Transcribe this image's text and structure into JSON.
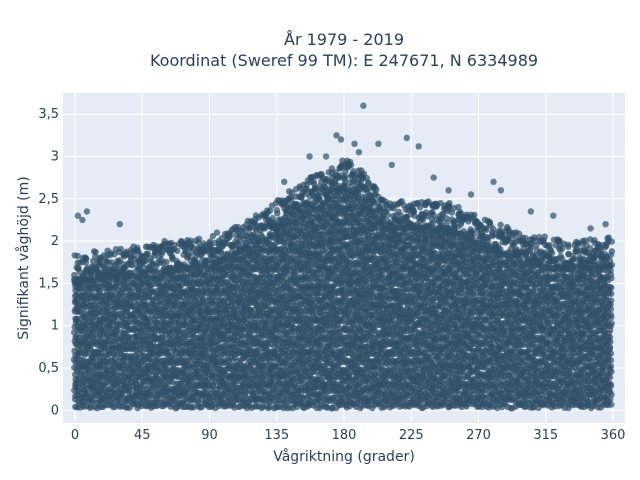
{
  "chart_data": {
    "type": "scatter",
    "title": "År 1979 - 2019",
    "subtitle": "Koordinat (Sweref 99 TM): E 247671, N 6334989",
    "xlabel": "Vågriktning (grader)",
    "ylabel": "Signifikant våghöjd (m)",
    "xlim": [
      -8,
      368
    ],
    "ylim": [
      -0.15,
      3.75
    ],
    "x_ticks": [
      0,
      45,
      90,
      135,
      180,
      225,
      270,
      315,
      360
    ],
    "x_tick_labels": [
      "0",
      "45",
      "90",
      "135",
      "180",
      "225",
      "270",
      "315",
      "360"
    ],
    "y_ticks": [
      0,
      0.5,
      1,
      1.5,
      2,
      2.5,
      3,
      3.5
    ],
    "y_tick_labels": [
      "0",
      "0,5",
      "1",
      "1,5",
      "2",
      "2,5",
      "3",
      "3,5"
    ],
    "grid": true,
    "background": "#e5ecf6",
    "marker_color": "#2f5068",
    "series": [
      {
        "upper_envelope": [
          [
            0,
            1.75
          ],
          [
            20,
            1.8
          ],
          [
            45,
            1.85
          ],
          [
            70,
            1.9
          ],
          [
            90,
            1.95
          ],
          [
            110,
            2.1
          ],
          [
            130,
            2.3
          ],
          [
            150,
            2.6
          ],
          [
            170,
            2.75
          ],
          [
            180,
            2.9
          ],
          [
            195,
            2.7
          ],
          [
            210,
            2.35
          ],
          [
            225,
            2.4
          ],
          [
            250,
            2.35
          ],
          [
            270,
            2.2
          ],
          [
            300,
            2.0
          ],
          [
            330,
            1.9
          ],
          [
            360,
            1.95
          ]
        ],
        "lower_bound": 0.05,
        "outliers": [
          [
            2,
            2.3
          ],
          [
            5,
            2.25
          ],
          [
            8,
            2.35
          ],
          [
            30,
            2.2
          ],
          [
            60,
            2.0
          ],
          [
            95,
            2.1
          ],
          [
            140,
            2.7
          ],
          [
            157,
            3.0
          ],
          [
            168,
            3.0
          ],
          [
            175,
            3.25
          ],
          [
            178,
            3.2
          ],
          [
            182,
            2.95
          ],
          [
            187,
            3.15
          ],
          [
            190,
            3.05
          ],
          [
            193,
            3.6
          ],
          [
            203,
            3.15
          ],
          [
            212,
            2.9
          ],
          [
            222,
            3.22
          ],
          [
            230,
            3.12
          ],
          [
            240,
            2.75
          ],
          [
            250,
            2.6
          ],
          [
            265,
            2.55
          ],
          [
            280,
            2.7
          ],
          [
            285,
            2.6
          ],
          [
            305,
            2.35
          ],
          [
            320,
            2.3
          ],
          [
            345,
            2.15
          ],
          [
            355,
            2.2
          ]
        ]
      }
    ]
  }
}
